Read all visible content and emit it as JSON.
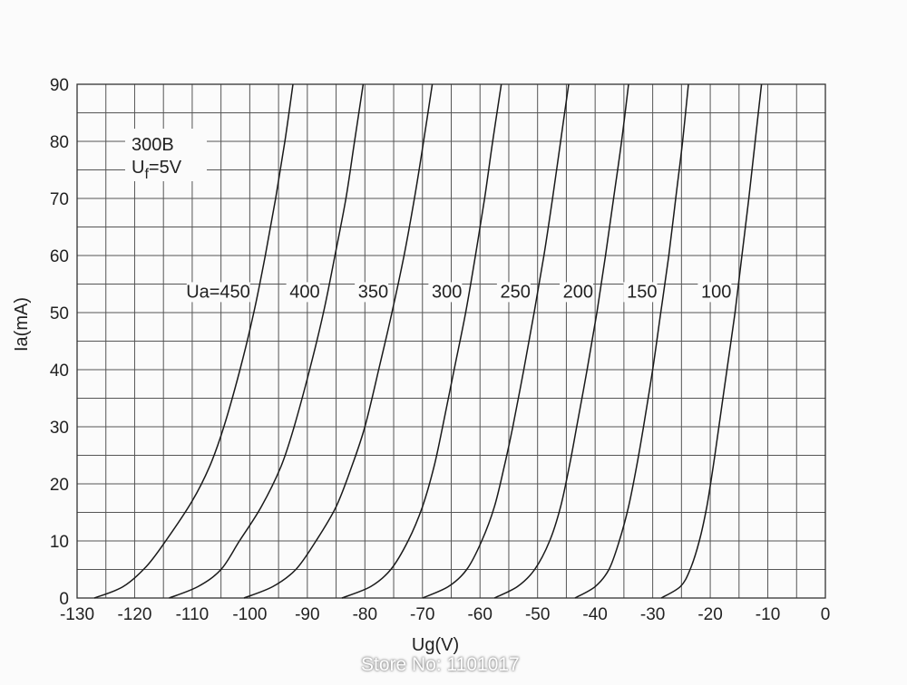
{
  "chart_data": {
    "type": "line",
    "xlabel": "Ug(V)",
    "ylabel": "Ia(mA)",
    "xlim": [
      -130,
      0
    ],
    "ylim": [
      0,
      90
    ],
    "x_ticks": [
      "-130",
      "-120",
      "-110",
      "-100",
      "-90",
      "-80",
      "-70",
      "-60",
      "-50",
      "-40",
      "-30",
      "-20",
      "-10",
      "0"
    ],
    "y_ticks": [
      "0",
      "10",
      "20",
      "30",
      "40",
      "50",
      "60",
      "70",
      "80",
      "90"
    ],
    "grid": true,
    "annotations": {
      "tube": "300B",
      "filament_main": "U",
      "filament_sub": "f",
      "filament_value": "=5V"
    },
    "series": [
      {
        "name": "Ua=450",
        "points": [
          [
            -127,
            0
          ],
          [
            -122,
            2
          ],
          [
            -118,
            5.5
          ],
          [
            -114.6,
            10
          ],
          [
            -110,
            17
          ],
          [
            -107,
            23
          ],
          [
            -104.5,
            30
          ],
          [
            -101.7,
            40
          ],
          [
            -99.3,
            50
          ],
          [
            -97.3,
            60
          ],
          [
            -95.5,
            70
          ],
          [
            -93.9,
            80
          ],
          [
            -92.5,
            90
          ]
        ]
      },
      {
        "name": "400",
        "points": [
          [
            -114,
            0
          ],
          [
            -109,
            2
          ],
          [
            -105,
            5
          ],
          [
            -101.8,
            10
          ],
          [
            -98,
            16
          ],
          [
            -94.6,
            23
          ],
          [
            -92.3,
            30
          ],
          [
            -89.6,
            40
          ],
          [
            -87.2,
            50
          ],
          [
            -85.2,
            60
          ],
          [
            -83.3,
            70
          ],
          [
            -81.8,
            80
          ],
          [
            -80.3,
            90
          ]
        ]
      },
      {
        "name": "350",
        "points": [
          [
            -101,
            0
          ],
          [
            -96,
            2
          ],
          [
            -92,
            5
          ],
          [
            -88.5,
            10
          ],
          [
            -85,
            16
          ],
          [
            -82.3,
            23
          ],
          [
            -80,
            30
          ],
          [
            -77.6,
            40
          ],
          [
            -75.3,
            50
          ],
          [
            -73.2,
            60
          ],
          [
            -71.4,
            70
          ],
          [
            -69.8,
            80
          ],
          [
            -68.3,
            90
          ]
        ]
      },
      {
        "name": "300",
        "points": [
          [
            -84,
            0
          ],
          [
            -79,
            2
          ],
          [
            -75.5,
            5
          ],
          [
            -72.5,
            10
          ],
          [
            -70,
            16
          ],
          [
            -68,
            23
          ],
          [
            -66.5,
            30
          ],
          [
            -64.5,
            40
          ],
          [
            -62.5,
            50
          ],
          [
            -60.8,
            60
          ],
          [
            -59.2,
            70
          ],
          [
            -57.8,
            80
          ],
          [
            -56.3,
            90
          ]
        ]
      },
      {
        "name": "250",
        "points": [
          [
            -70,
            0
          ],
          [
            -65.5,
            2
          ],
          [
            -62.3,
            5
          ],
          [
            -59.7,
            10
          ],
          [
            -57.5,
            16
          ],
          [
            -55.8,
            23
          ],
          [
            -54.3,
            30
          ],
          [
            -52.4,
            40
          ],
          [
            -50.6,
            50
          ],
          [
            -48.9,
            60
          ],
          [
            -47.4,
            70
          ],
          [
            -46,
            80
          ],
          [
            -44.6,
            90
          ]
        ]
      },
      {
        "name": "200",
        "points": [
          [
            -57.5,
            0
          ],
          [
            -53.5,
            2
          ],
          [
            -50.5,
            5
          ],
          [
            -47.9,
            10
          ],
          [
            -46,
            16
          ],
          [
            -44.5,
            23
          ],
          [
            -43.2,
            30
          ],
          [
            -41.4,
            40
          ],
          [
            -39.7,
            50
          ],
          [
            -38.2,
            60
          ],
          [
            -36.8,
            70
          ],
          [
            -35.4,
            80
          ],
          [
            -34.2,
            90
          ]
        ]
      },
      {
        "name": "150",
        "points": [
          [
            -43.5,
            0
          ],
          [
            -40,
            2
          ],
          [
            -37.6,
            5
          ],
          [
            -35.8,
            10
          ],
          [
            -34.2,
            16
          ],
          [
            -32.8,
            23
          ],
          [
            -31.6,
            30
          ],
          [
            -30,
            40
          ],
          [
            -28.6,
            50
          ],
          [
            -27.2,
            60
          ],
          [
            -26,
            70
          ],
          [
            -24.8,
            80
          ],
          [
            -23.8,
            90
          ]
        ]
      },
      {
        "name": "100",
        "points": [
          [
            -28.5,
            0
          ],
          [
            -25.2,
            2
          ],
          [
            -23.5,
            5
          ],
          [
            -21.9,
            10
          ],
          [
            -20.6,
            16
          ],
          [
            -19.5,
            23
          ],
          [
            -18.5,
            30
          ],
          [
            -17.1,
            40
          ],
          [
            -15.7,
            50
          ],
          [
            -14.5,
            60
          ],
          [
            -13.3,
            70
          ],
          [
            -12.2,
            80
          ],
          [
            -11.1,
            90
          ]
        ]
      }
    ]
  },
  "watermark": "Store No: 1101017"
}
